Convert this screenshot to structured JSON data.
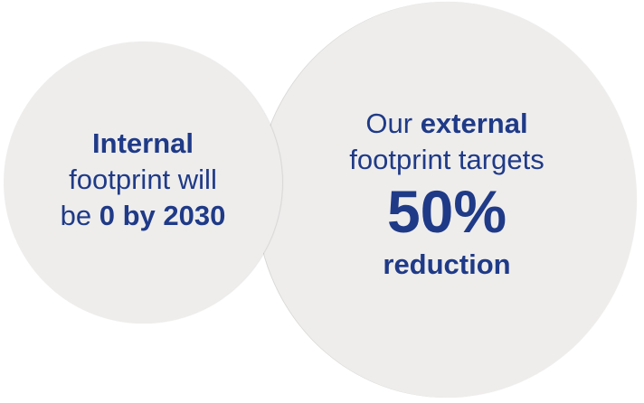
{
  "internal": {
    "line1_bold": "Internal",
    "line2": "footprint will",
    "line3_prefix": "be ",
    "line3_bold": "0 by 2030"
  },
  "external": {
    "line1_prefix": "Our ",
    "line1_bold": "external",
    "line2": "footprint targets",
    "percent": "50%",
    "reduction": "reduction"
  },
  "colors": {
    "text": "#1f3a87",
    "circle_fill": "#eeedec",
    "background": "#ffffff"
  }
}
